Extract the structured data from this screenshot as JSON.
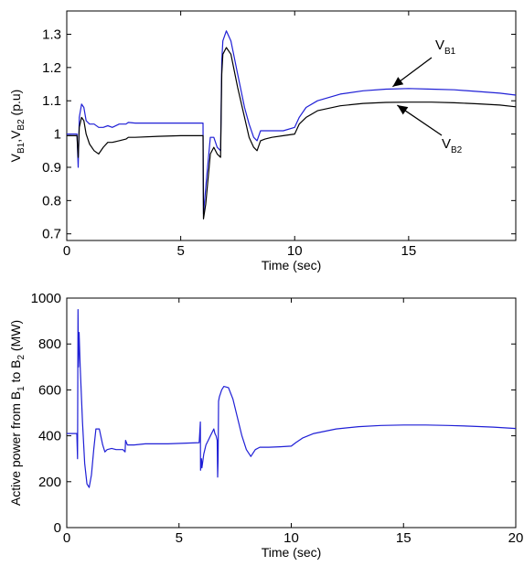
{
  "chart_data": [
    {
      "type": "line",
      "ylabel": {
        "parts": [
          "V",
          "B1",
          ",V",
          "B2",
          " (p.u)"
        ]
      },
      "xlabel": "Time (sec)",
      "xlim": [
        0,
        19.7
      ],
      "ylim": [
        0.68,
        1.37
      ],
      "xticks": [
        0,
        5,
        10,
        15
      ],
      "yticks": [
        0.7,
        0.8,
        0.9,
        1,
        1.1,
        1.2,
        1.3
      ],
      "ytick_labels": [
        "0.7",
        "0.8",
        "0.9",
        "1",
        "1.1",
        "1.2",
        "1.3"
      ],
      "grid": false,
      "series": [
        {
          "name": "VB1",
          "color": "#1f1fd6",
          "x": [
            0,
            0.45,
            0.5,
            0.55,
            0.65,
            0.75,
            0.85,
            1.0,
            1.2,
            1.4,
            1.6,
            1.8,
            2.0,
            2.3,
            2.6,
            2.7,
            3,
            4,
            5,
            5.98,
            6.0,
            6.1,
            6.3,
            6.45,
            6.6,
            6.75,
            6.8,
            6.85,
            7.0,
            7.2,
            7.5,
            7.8,
            8.0,
            8.2,
            8.35,
            8.5,
            8.7,
            9,
            9.5,
            10.0,
            10.2,
            10.5,
            11,
            12,
            13,
            14,
            15,
            16,
            17,
            18,
            19,
            19.7
          ],
          "y": [
            1.0,
            1.0,
            0.9,
            1.05,
            1.09,
            1.08,
            1.04,
            1.03,
            1.03,
            1.02,
            1.02,
            1.025,
            1.02,
            1.03,
            1.03,
            1.035,
            1.033,
            1.033,
            1.033,
            1.033,
            0.76,
            0.84,
            0.99,
            0.99,
            0.96,
            0.95,
            1.22,
            1.28,
            1.31,
            1.28,
            1.18,
            1.08,
            1.03,
            0.99,
            0.98,
            1.01,
            1.01,
            1.01,
            1.01,
            1.02,
            1.05,
            1.08,
            1.1,
            1.12,
            1.13,
            1.135,
            1.137,
            1.135,
            1.133,
            1.128,
            1.123,
            1.117
          ]
        },
        {
          "name": "VB2",
          "color": "#000000",
          "x": [
            0,
            0.45,
            0.5,
            0.55,
            0.65,
            0.75,
            0.85,
            1.0,
            1.2,
            1.4,
            1.6,
            1.8,
            2.0,
            2.3,
            2.6,
            2.7,
            3,
            4,
            5,
            5.98,
            6.0,
            6.1,
            6.3,
            6.45,
            6.6,
            6.75,
            6.8,
            6.85,
            7.0,
            7.2,
            7.5,
            7.8,
            8.0,
            8.2,
            8.35,
            8.5,
            8.7,
            9,
            9.5,
            10.0,
            10.2,
            10.5,
            11,
            12,
            13,
            14,
            15,
            16,
            17,
            18,
            19,
            19.7
          ],
          "y": [
            0.995,
            0.995,
            0.93,
            1.02,
            1.05,
            1.04,
            1.0,
            0.97,
            0.95,
            0.94,
            0.96,
            0.975,
            0.975,
            0.98,
            0.985,
            0.99,
            0.99,
            0.993,
            0.995,
            0.995,
            0.745,
            0.79,
            0.94,
            0.96,
            0.94,
            0.93,
            1.18,
            1.24,
            1.26,
            1.24,
            1.14,
            1.05,
            0.99,
            0.96,
            0.95,
            0.98,
            0.985,
            0.99,
            0.995,
            1.0,
            1.03,
            1.05,
            1.07,
            1.085,
            1.092,
            1.095,
            1.096,
            1.096,
            1.094,
            1.091,
            1.087,
            1.082
          ]
        }
      ],
      "annotations": [
        {
          "label": {
            "parts": [
              "V",
              "B1"
            ]
          },
          "points_to": "VB1 curve at t ≈ 14.3"
        },
        {
          "label": {
            "parts": [
              "V",
              "B2"
            ]
          },
          "points_to": "VB2 curve at t ≈ 14.5"
        }
      ]
    },
    {
      "type": "line",
      "ylabel": {
        "parts": [
          "Active power from B",
          "1",
          " to B",
          "2",
          " (MW)"
        ]
      },
      "xlabel": "Time (sec)",
      "xlim": [
        0,
        20
      ],
      "ylim": [
        0,
        1000
      ],
      "xticks": [
        0,
        5,
        10,
        15,
        20
      ],
      "yticks": [
        0,
        200,
        400,
        600,
        800,
        1000
      ],
      "ytick_labels": [
        "0",
        "200",
        "400",
        "600",
        "800",
        "1000"
      ],
      "grid": false,
      "series": [
        {
          "name": "Active power",
          "color": "#1f1fd6",
          "x": [
            0,
            0.45,
            0.48,
            0.5,
            0.52,
            0.55,
            0.6,
            0.7,
            0.8,
            0.9,
            1.0,
            1.1,
            1.2,
            1.3,
            1.45,
            1.6,
            1.7,
            1.8,
            2.0,
            2.2,
            2.5,
            2.6,
            2.62,
            2.7,
            3.0,
            3.5,
            4.5,
            5.9,
            5.95,
            5.96,
            6.0,
            6.02,
            6.1,
            6.2,
            6.3,
            6.4,
            6.5,
            6.55,
            6.6,
            6.65,
            6.7,
            6.72,
            6.74,
            6.76,
            6.8,
            6.9,
            7.0,
            7.2,
            7.4,
            7.6,
            7.8,
            8.0,
            8.2,
            8.4,
            8.6,
            8.8,
            9,
            9.5,
            10.0,
            10.2,
            10.5,
            11,
            12,
            13,
            14,
            15,
            16,
            17,
            18,
            19,
            20
          ],
          "y": [
            410,
            410,
            300,
            950,
            700,
            850,
            700,
            460,
            280,
            190,
            175,
            230,
            340,
            430,
            430,
            360,
            330,
            340,
            345,
            340,
            340,
            330,
            380,
            360,
            360,
            365,
            365,
            370,
            460,
            250,
            300,
            260,
            320,
            360,
            380,
            400,
            420,
            430,
            410,
            400,
            380,
            220,
            300,
            550,
            570,
            600,
            615,
            610,
            560,
            480,
            400,
            340,
            310,
            340,
            350,
            350,
            350,
            352,
            355,
            370,
            390,
            410,
            430,
            440,
            445,
            447,
            447,
            445,
            442,
            438,
            432
          ]
        }
      ]
    }
  ]
}
